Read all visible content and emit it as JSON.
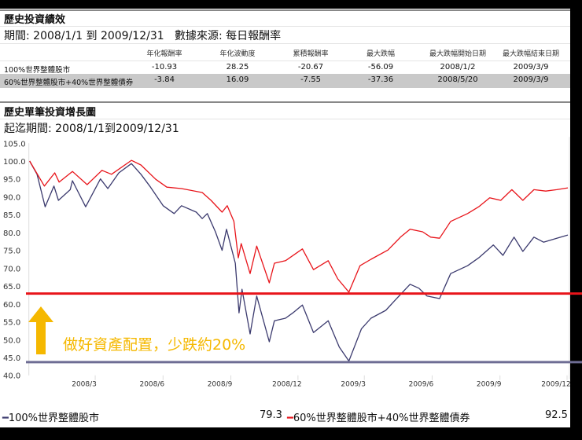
{
  "section1": {
    "title": "歷史投資績效",
    "period": "期間: 2008/1/1 到 2009/12/31",
    "source": "數據來源: 每日報酬率",
    "columns": [
      "年化報酬率",
      "年化波動度",
      "累積報酬率",
      "最大跌幅",
      "最大跌幅開始日期",
      "最大跌幅結束日期"
    ],
    "rows": [
      {
        "name": "100%世界整體股市",
        "values": [
          "-10.93",
          "28.25",
          "-20.67",
          "-56.09",
          "2008/1/2",
          "2009/3/9"
        ]
      },
      {
        "name": "60%世界整體股市+40%世界整體債券",
        "values": [
          "-3.84",
          "16.09",
          "-7.55",
          "-37.36",
          "2008/5/20",
          "2009/3/9"
        ]
      }
    ]
  },
  "section2": {
    "title": "歷史單筆投資增長圖",
    "period": "起迄期間: 2008/1/1到2009/12/31"
  },
  "annotation": {
    "text": "做好資產配置，少跌約20%",
    "color": "#f5b800",
    "icon": "arrow-up-icon"
  },
  "legend": [
    {
      "label": "100%世界整體股市",
      "value": "79.3",
      "color": "#3b3a6e"
    },
    {
      "label": "60%世界整體股市+40%世界整體債券",
      "value": "92.5",
      "color": "#e8141a"
    }
  ],
  "chart_data": {
    "type": "line",
    "xlim": [
      "2008-01-01",
      "2009-12-31"
    ],
    "ylim": [
      40,
      105
    ],
    "yticks": [
      "105.0",
      "100.0",
      "95.0",
      "90.0",
      "85.0",
      "80.0",
      "75.0",
      "70.0",
      "65.0",
      "60.0",
      "55.0",
      "50.0",
      "45.0",
      "40.0"
    ],
    "xticks": [
      {
        "label": "2008/3",
        "date": "2008-03-15"
      },
      {
        "label": "2008/6",
        "date": "2008-06-15"
      },
      {
        "label": "2008/9",
        "date": "2008-09-15"
      },
      {
        "label": "2008/12",
        "date": "2008-12-15"
      },
      {
        "label": "2009/3",
        "date": "2009-03-15"
      },
      {
        "label": "2009/6",
        "date": "2009-06-15"
      },
      {
        "label": "2009/9",
        "date": "2009-09-15"
      },
      {
        "label": "2009/12",
        "date": "2009-12-15"
      }
    ],
    "reference_lines": [
      {
        "value": 62.9,
        "color": "#e8141a"
      },
      {
        "value": 43.7,
        "color": "#6e6d94"
      }
    ],
    "series": [
      {
        "name": "100%世界整體股市",
        "color": "#3b3a6e",
        "points": [
          [
            "2008-01-01",
            100
          ],
          [
            "2008-01-11",
            96.3
          ],
          [
            "2008-01-22",
            87.2
          ],
          [
            "2008-02-03",
            93
          ],
          [
            "2008-02-09",
            89
          ],
          [
            "2008-02-25",
            92
          ],
          [
            "2008-02-28",
            94.5
          ],
          [
            "2008-03-17",
            87.2
          ],
          [
            "2008-04-06",
            95
          ],
          [
            "2008-04-16",
            92.3
          ],
          [
            "2008-05-01",
            96.7
          ],
          [
            "2008-05-18",
            99.3
          ],
          [
            "2008-05-31",
            96.3
          ],
          [
            "2008-06-13",
            92.7
          ],
          [
            "2008-06-30",
            87.5
          ],
          [
            "2008-07-15",
            85.3
          ],
          [
            "2008-07-25",
            87.5
          ],
          [
            "2008-08-14",
            85.7
          ],
          [
            "2008-08-22",
            83.9
          ],
          [
            "2008-08-29",
            85.3
          ],
          [
            "2008-09-09",
            80.2
          ],
          [
            "2008-09-18",
            75
          ],
          [
            "2008-09-24",
            80.9
          ],
          [
            "2008-10-06",
            71.4
          ],
          [
            "2008-10-11",
            57.5
          ],
          [
            "2008-10-15",
            64.1
          ],
          [
            "2008-10-26",
            51.6
          ],
          [
            "2008-11-04",
            62.2
          ],
          [
            "2008-11-21",
            49.4
          ],
          [
            "2008-11-28",
            55.3
          ],
          [
            "2008-12-13",
            56
          ],
          [
            "2008-12-23",
            57.5
          ],
          [
            "2009-01-05",
            59.7
          ],
          [
            "2009-01-20",
            52
          ],
          [
            "2009-02-09",
            55.3
          ],
          [
            "2009-02-24",
            47.9
          ],
          [
            "2009-03-09",
            44
          ],
          [
            "2009-03-26",
            53
          ],
          [
            "2009-04-08",
            56
          ],
          [
            "2009-04-28",
            58.2
          ],
          [
            "2009-05-11",
            61.1
          ],
          [
            "2009-05-31",
            65.5
          ],
          [
            "2009-06-12",
            64.4
          ],
          [
            "2009-06-23",
            62.2
          ],
          [
            "2009-07-10",
            61.5
          ],
          [
            "2009-07-25",
            68.5
          ],
          [
            "2009-08-17",
            70.7
          ],
          [
            "2009-09-01",
            72.9
          ],
          [
            "2009-09-21",
            76.5
          ],
          [
            "2009-10-04",
            73.6
          ],
          [
            "2009-10-19",
            78.7
          ],
          [
            "2009-10-31",
            74.7
          ],
          [
            "2009-11-15",
            78.7
          ],
          [
            "2009-11-28",
            77.3
          ],
          [
            "2009-12-16",
            78.4
          ],
          [
            "2009-12-31",
            79.3
          ]
        ]
      },
      {
        "name": "60%世界整體股市+40%世界整體債券",
        "color": "#e8141a",
        "points": [
          [
            "2008-01-01",
            100
          ],
          [
            "2008-01-21",
            93
          ],
          [
            "2008-02-04",
            96.7
          ],
          [
            "2008-02-10",
            94.1
          ],
          [
            "2008-02-28",
            97.1
          ],
          [
            "2008-03-19",
            93.4
          ],
          [
            "2008-04-08",
            97.4
          ],
          [
            "2008-04-21",
            96.3
          ],
          [
            "2008-05-18",
            100.2
          ],
          [
            "2008-05-31",
            98.9
          ],
          [
            "2008-06-20",
            94.9
          ],
          [
            "2008-07-05",
            92.7
          ],
          [
            "2008-07-25",
            92.3
          ],
          [
            "2008-08-22",
            91.2
          ],
          [
            "2008-09-03",
            89
          ],
          [
            "2008-09-18",
            85.7
          ],
          [
            "2008-09-25",
            87.5
          ],
          [
            "2008-10-04",
            83.1
          ],
          [
            "2008-10-10",
            72.9
          ],
          [
            "2008-10-14",
            76.9
          ],
          [
            "2008-10-26",
            68.5
          ],
          [
            "2008-11-04",
            76.2
          ],
          [
            "2008-11-21",
            65.9
          ],
          [
            "2008-11-28",
            71.4
          ],
          [
            "2008-12-13",
            72.1
          ],
          [
            "2009-01-05",
            75.4
          ],
          [
            "2009-01-20",
            69.6
          ],
          [
            "2009-02-09",
            72.1
          ],
          [
            "2009-02-22",
            67
          ],
          [
            "2009-03-09",
            63.3
          ],
          [
            "2009-03-24",
            70.7
          ],
          [
            "2009-04-08",
            72.5
          ],
          [
            "2009-05-01",
            75.1
          ],
          [
            "2009-05-18",
            78.7
          ],
          [
            "2009-05-31",
            80.9
          ],
          [
            "2009-06-17",
            80.2
          ],
          [
            "2009-06-28",
            78.7
          ],
          [
            "2009-07-10",
            78.4
          ],
          [
            "2009-07-25",
            83.1
          ],
          [
            "2009-08-17",
            85.3
          ],
          [
            "2009-09-01",
            87.2
          ],
          [
            "2009-09-16",
            89.7
          ],
          [
            "2009-10-01",
            89
          ],
          [
            "2009-10-16",
            92
          ],
          [
            "2009-10-31",
            89
          ],
          [
            "2009-11-15",
            92
          ],
          [
            "2009-12-01",
            91.6
          ],
          [
            "2009-12-16",
            92
          ],
          [
            "2009-12-31",
            92.5
          ]
        ]
      }
    ]
  }
}
